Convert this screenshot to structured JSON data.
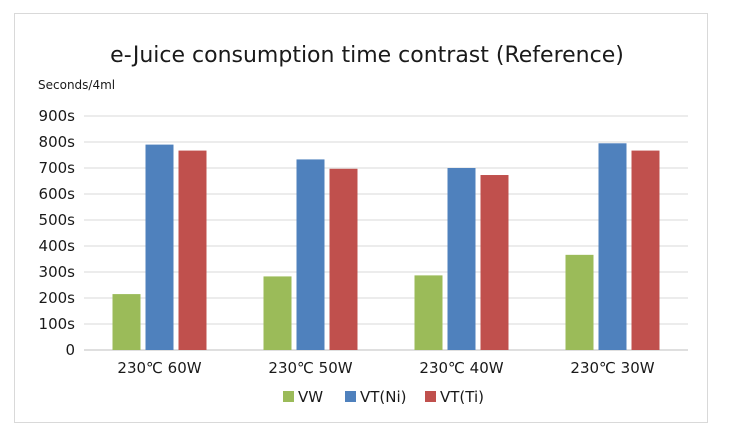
{
  "chart_data": {
    "type": "bar",
    "title": "e-Juice consumption time contrast (Reference)",
    "ylabel": "Seconds/4ml",
    "xlabel": "",
    "categories": [
      "230℃ 60W",
      "230℃ 50W",
      "230℃ 40W",
      "230℃ 30W"
    ],
    "series": [
      {
        "name": "VW",
        "color": "#9bbb59",
        "values": [
          215,
          283,
          287,
          366
        ]
      },
      {
        "name": "VT(Ni)",
        "color": "#4f81bd",
        "values": [
          790,
          733,
          700,
          795
        ]
      },
      {
        "name": "VT(Ti)",
        "color": "#c0504d",
        "values": [
          767,
          697,
          673,
          767
        ]
      }
    ],
    "ylim": [
      0,
      900
    ],
    "yticks": [
      0,
      100,
      200,
      300,
      400,
      500,
      600,
      700,
      800,
      900
    ],
    "ytick_labels": [
      "0",
      "100s",
      "200s",
      "300s",
      "400s",
      "500s",
      "600s",
      "700s",
      "800s",
      "900s"
    ],
    "grid": true,
    "legend_position": "bottom"
  }
}
